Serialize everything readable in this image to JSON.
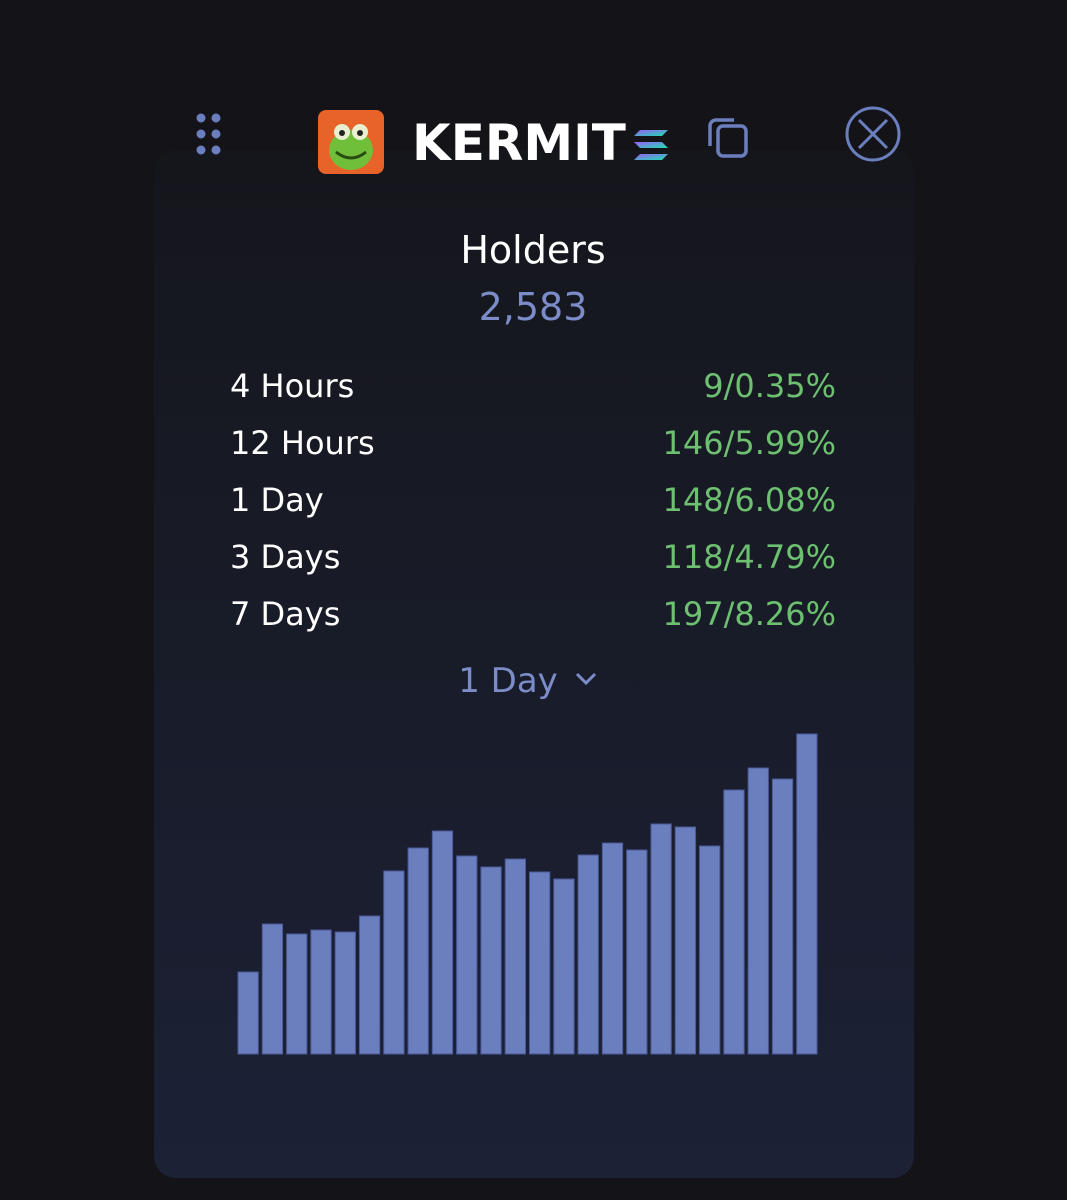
{
  "header": {
    "title": "KERMIT"
  },
  "holders": {
    "label": "Holders",
    "value": "2,583"
  },
  "rows": [
    {
      "label": "4 Hours",
      "value": "9/0.35%"
    },
    {
      "label": "12 Hours",
      "value": "146/5.99%"
    },
    {
      "label": "1 Day",
      "value": "148/6.08%"
    },
    {
      "label": "3 Days",
      "value": "118/4.79%"
    },
    {
      "label": "7 Days",
      "value": "197/8.26%"
    }
  ],
  "dropdown": {
    "label": "1 Day"
  },
  "chart_data": {
    "type": "bar",
    "color": "#6b7ebd",
    "values": [
      82,
      130,
      120,
      124,
      122,
      138,
      183,
      206,
      223,
      198,
      187,
      195,
      182,
      175,
      199,
      211,
      204,
      230,
      227,
      208,
      264,
      286,
      275,
      320
    ]
  }
}
